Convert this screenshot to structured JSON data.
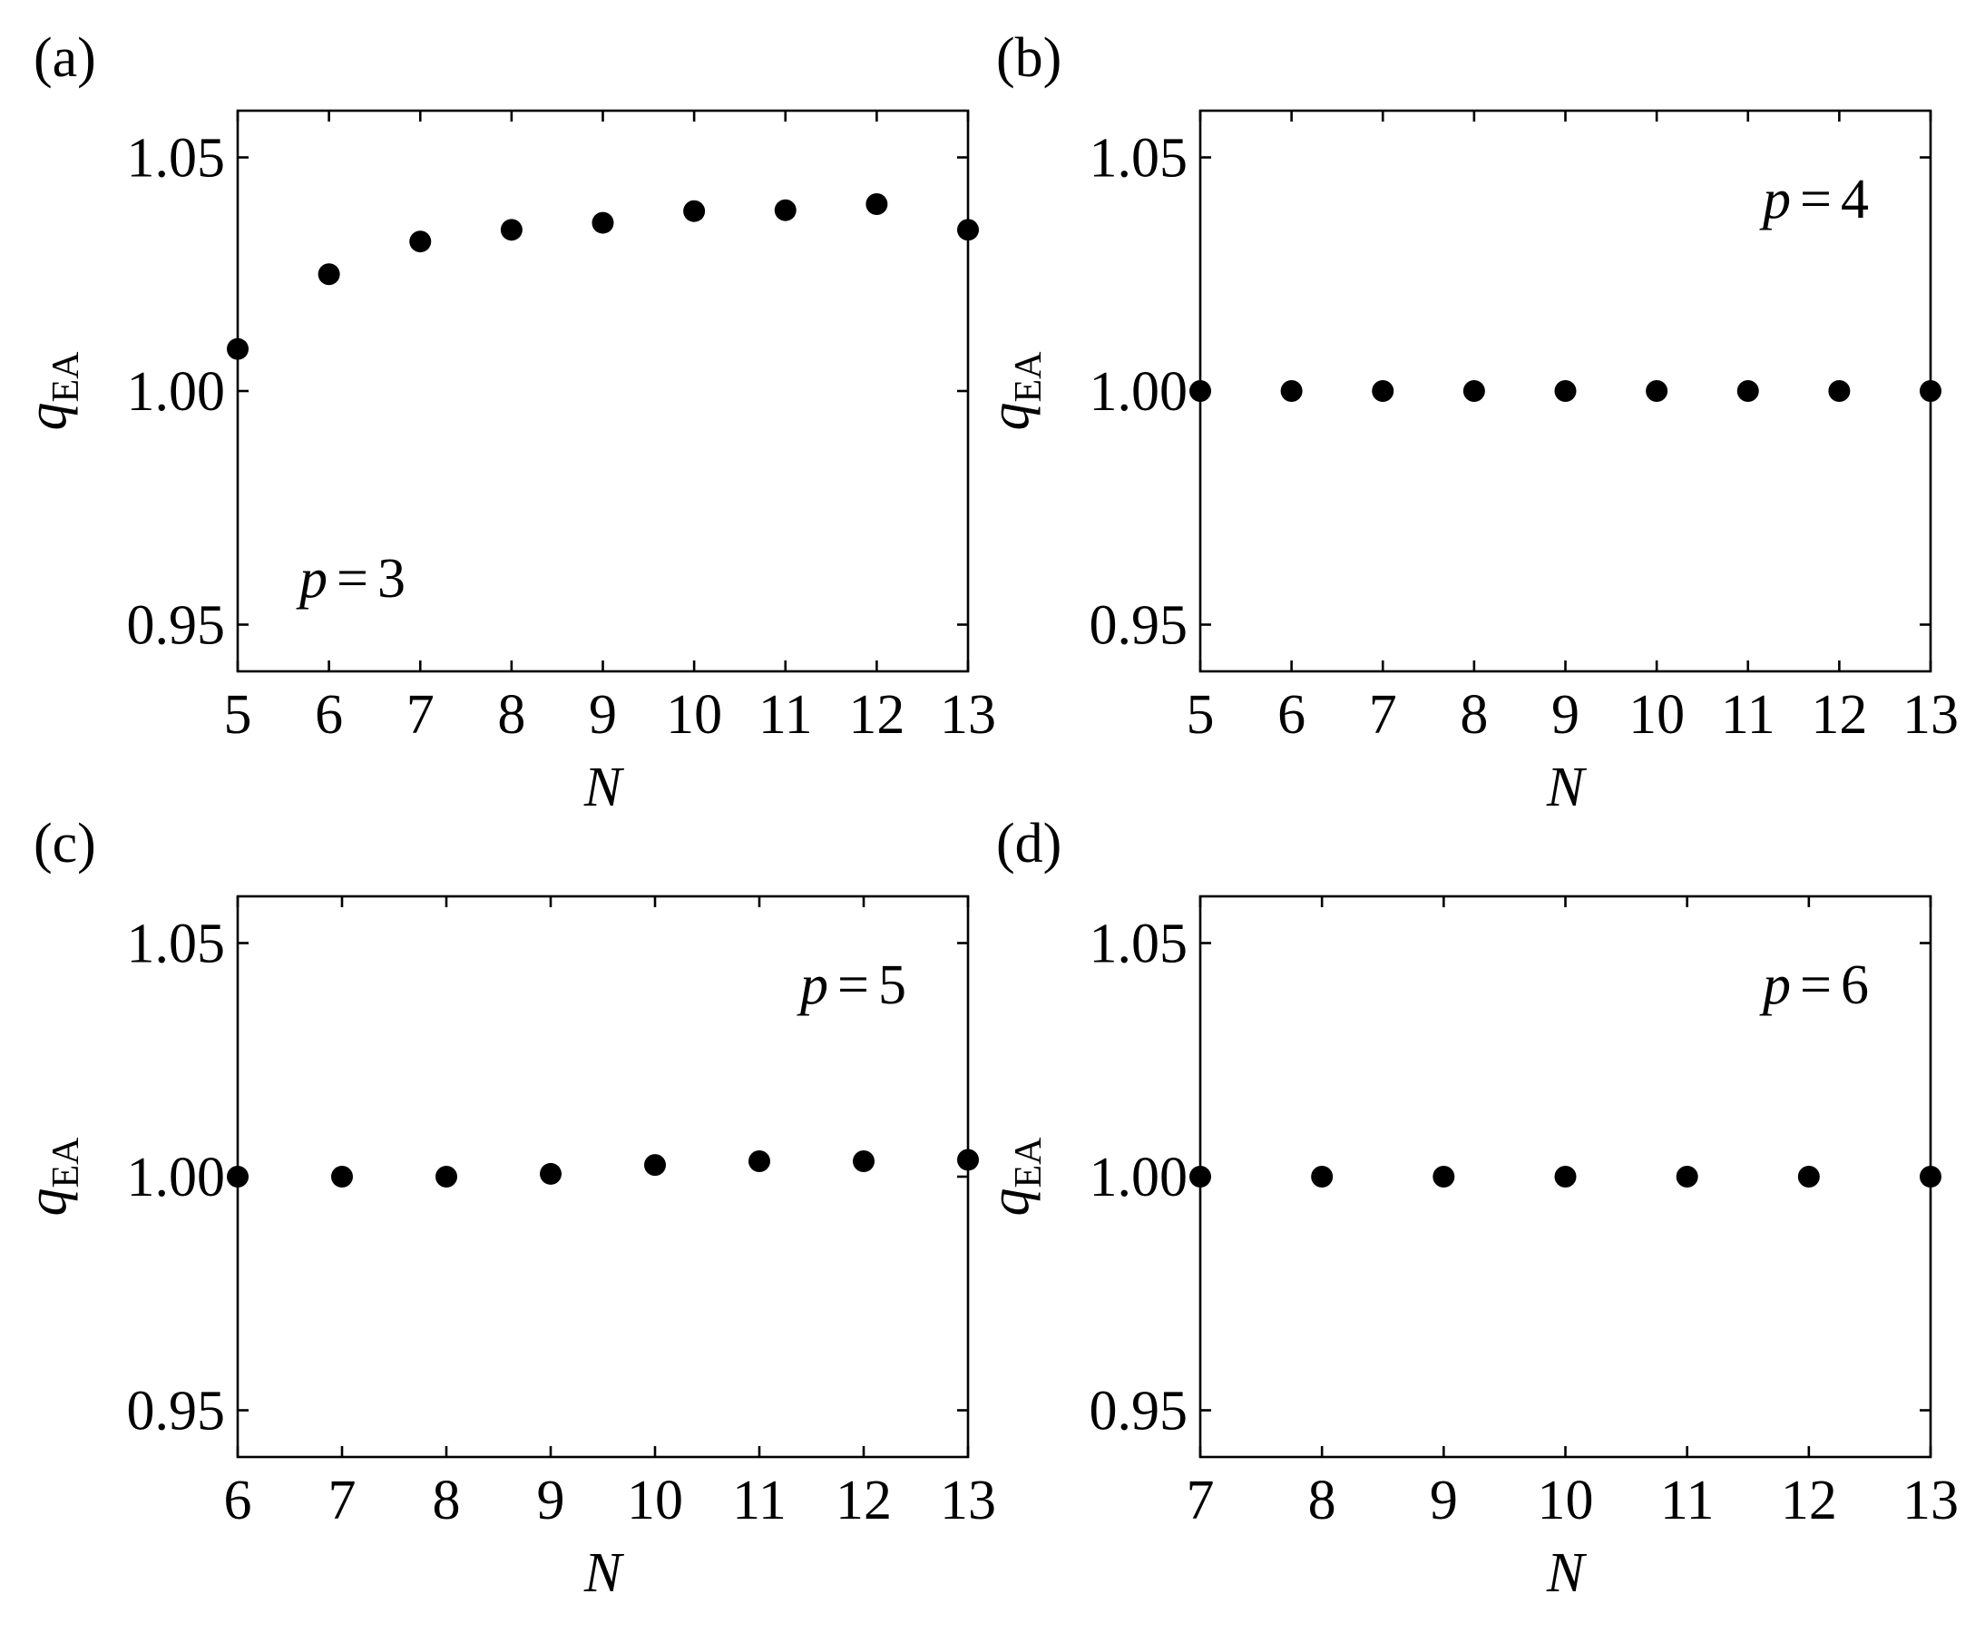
{
  "chart_data": [
    {
      "type": "scatter",
      "panel_label": "(a)",
      "annotation": {
        "var": "p",
        "op": "=",
        "value": "3"
      },
      "annotation_position": "bottom-left",
      "xlabel": "N",
      "ylabel": {
        "main": "q",
        "sub": "EA"
      },
      "xlim": [
        5,
        13
      ],
      "ylim": [
        0.94,
        1.06
      ],
      "xticks": [
        "5",
        "6",
        "7",
        "8",
        "9",
        "10",
        "11",
        "12",
        "13"
      ],
      "yticks": [
        "0.95",
        "1.00",
        "1.05"
      ],
      "grid": false,
      "marker_color": "#000000",
      "x": [
        5,
        6,
        7,
        8,
        9,
        10,
        11,
        12,
        13
      ],
      "y": [
        1.009,
        1.025,
        1.032,
        1.0345,
        1.036,
        1.0385,
        1.0387,
        1.04,
        1.0345
      ]
    },
    {
      "type": "scatter",
      "panel_label": "(b)",
      "annotation": {
        "var": "p",
        "op": "=",
        "value": "4"
      },
      "annotation_position": "top-right",
      "xlabel": "N",
      "ylabel": {
        "main": "q",
        "sub": "EA"
      },
      "xlim": [
        5,
        13
      ],
      "ylim": [
        0.94,
        1.06
      ],
      "xticks": [
        "5",
        "6",
        "7",
        "8",
        "9",
        "10",
        "11",
        "12",
        "13"
      ],
      "yticks": [
        "0.95",
        "1.00",
        "1.05"
      ],
      "grid": false,
      "marker_color": "#000000",
      "x": [
        5,
        6,
        7,
        8,
        9,
        10,
        11,
        12,
        13
      ],
      "y": [
        1.0,
        1.0,
        1.0,
        1.0,
        1.0,
        1.0,
        1.0,
        1.0,
        1.0
      ]
    },
    {
      "type": "scatter",
      "panel_label": "(c)",
      "annotation": {
        "var": "p",
        "op": "=",
        "value": "5"
      },
      "annotation_position": "top-right",
      "xlabel": "N",
      "ylabel": {
        "main": "q",
        "sub": "EA"
      },
      "xlim": [
        6,
        13
      ],
      "ylim": [
        0.94,
        1.06
      ],
      "xticks": [
        "6",
        "7",
        "8",
        "9",
        "10",
        "11",
        "12",
        "13"
      ],
      "yticks": [
        "0.95",
        "1.00",
        "1.05"
      ],
      "grid": false,
      "marker_color": "#000000",
      "x": [
        6,
        7,
        8,
        9,
        10,
        11,
        12,
        13
      ],
      "y": [
        1.0,
        1.0,
        1.0,
        1.0006,
        1.0025,
        1.0033,
        1.0033,
        1.0036
      ]
    },
    {
      "type": "scatter",
      "panel_label": "(d)",
      "annotation": {
        "var": "p",
        "op": "=",
        "value": "6"
      },
      "annotation_position": "top-right",
      "xlabel": "N",
      "ylabel": {
        "main": "q",
        "sub": "EA"
      },
      "xlim": [
        7,
        13
      ],
      "ylim": [
        0.94,
        1.06
      ],
      "xticks": [
        "7",
        "8",
        "9",
        "10",
        "11",
        "12",
        "13"
      ],
      "yticks": [
        "0.95",
        "1.00",
        "1.05"
      ],
      "grid": false,
      "marker_color": "#000000",
      "x": [
        7,
        8,
        9,
        10,
        11,
        12,
        13
      ],
      "y": [
        1.0,
        1.0,
        1.0,
        1.0,
        1.0,
        1.0,
        1.0
      ]
    }
  ]
}
